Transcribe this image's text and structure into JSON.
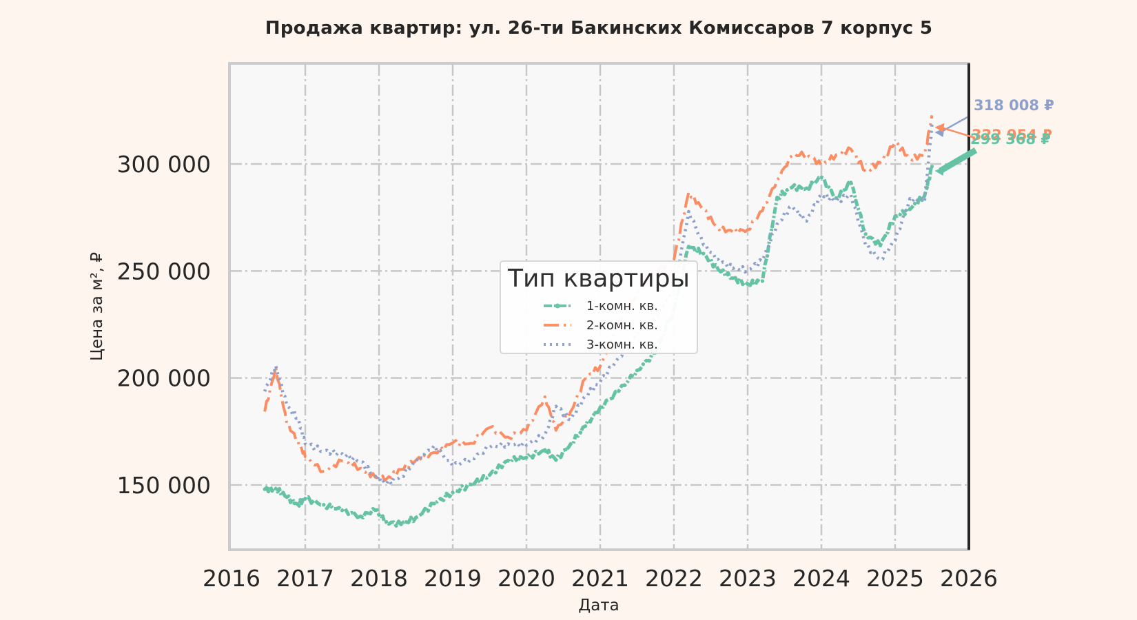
{
  "title": "Продажа квартир: ул. 26-ти Бакинских Комиссаров 7 корпус 5",
  "axes": {
    "xlabel": "Дата",
    "ylabel": "Цена за м², ₽",
    "xticks": [
      "2016",
      "2017",
      "2018",
      "2019",
      "2020",
      "2021",
      "2022",
      "2023",
      "2024",
      "2025",
      "2026"
    ],
    "yticks": [
      "150 000",
      "200 000",
      "250 000",
      "300 000"
    ]
  },
  "legend": {
    "title": "Тип квартиры",
    "items": [
      {
        "label": "1-комн. кв.",
        "color": "#66c2a5",
        "style": "dash-dot-marker"
      },
      {
        "label": "2-комн. кв.",
        "color": "#fc8d62",
        "style": "dash-dot"
      },
      {
        "label": "3-комн. кв.",
        "color": "#8da0cb",
        "style": "dotted"
      }
    ]
  },
  "end_labels": [
    {
      "text": "318 008 ₽",
      "color": "#8da0cb"
    },
    {
      "text": "322 954 ₽",
      "color": "#fc8d62"
    },
    {
      "text": "299 368 ₽",
      "color": "#66c2a5"
    }
  ],
  "colors": {
    "background": "#fef6ee",
    "plot_bg": "#f8f8f8",
    "grid": "#c8c8c8"
  },
  "chart_data": {
    "type": "line",
    "title": "Продажа квартир: ул. 26-ти Бакинских Комиссаров 7 корпус 5",
    "xlabel": "Дата",
    "ylabel": "Цена за м², ₽",
    "xlim": [
      2016,
      2026
    ],
    "ylim": [
      127000,
      347000
    ],
    "grid": true,
    "legend_position": "center",
    "legend_title": "Тип квартиры",
    "x": [
      2016.45,
      2016.6,
      2016.75,
      2016.9,
      2017.0,
      2017.25,
      2017.5,
      2017.75,
      2017.95,
      2018.1,
      2018.3,
      2018.5,
      2018.75,
      2019.0,
      2019.25,
      2019.5,
      2019.75,
      2020.0,
      2020.25,
      2020.4,
      2020.6,
      2020.8,
      2021.0,
      2021.25,
      2021.5,
      2021.75,
      2022.0,
      2022.2,
      2022.4,
      2022.6,
      2022.8,
      2023.0,
      2023.2,
      2023.4,
      2023.6,
      2023.8,
      2024.0,
      2024.2,
      2024.4,
      2024.6,
      2024.8,
      2025.0,
      2025.2,
      2025.4,
      2025.5
    ],
    "series": [
      {
        "name": "1-комн. кв.",
        "values": [
          148000,
          149000,
          145000,
          141000,
          143000,
          140000,
          138000,
          136000,
          139000,
          133000,
          131000,
          134000,
          141000,
          147000,
          151000,
          155000,
          161000,
          162000,
          166000,
          162000,
          170000,
          178000,
          186000,
          193000,
          203000,
          212000,
          233000,
          262000,
          258000,
          250000,
          246000,
          244000,
          246000,
          285000,
          289000,
          288000,
          293000,
          284000,
          292000,
          268000,
          262000,
          275000,
          278000,
          285000,
          299368
        ]
      },
      {
        "name": "2-комн. кв.",
        "values": [
          185000,
          205000,
          178000,
          170000,
          163000,
          157000,
          162000,
          158000,
          153000,
          152000,
          157000,
          162000,
          166000,
          170000,
          169000,
          176000,
          172000,
          176000,
          192000,
          176000,
          184000,
          199000,
          205000,
          226000,
          240000,
          250000,
          255000,
          286000,
          278000,
          270000,
          269000,
          270000,
          278000,
          292000,
          303000,
          305000,
          300000,
          305000,
          307000,
          296000,
          300000,
          310000,
          303000,
          305000,
          322954
        ]
      },
      {
        "name": "3-комн. кв.",
        "values": [
          193000,
          205000,
          187000,
          182000,
          170000,
          166000,
          164000,
          160000,
          154000,
          151000,
          155000,
          161000,
          168000,
          158000,
          162000,
          168000,
          170000,
          169000,
          173000,
          186000,
          180000,
          192000,
          199000,
          210000,
          220000,
          228000,
          240000,
          278000,
          263000,
          256000,
          251000,
          250000,
          254000,
          272000,
          281000,
          274000,
          286000,
          282000,
          285000,
          262000,
          256000,
          265000,
          284000,
          282000,
          318008
        ]
      }
    ]
  }
}
